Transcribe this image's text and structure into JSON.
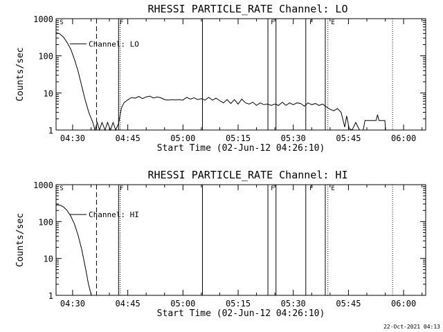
{
  "footer": "22-Oct-2021 04:13",
  "chart_data": [
    {
      "type": "line",
      "title": "RHESSI PARTICLE_RATE Channel: LO",
      "xlabel": "Start Time (02-Jun-12 04:26:10)",
      "ylabel": "Counts/sec",
      "yscale": "log",
      "ylim": [
        1,
        1000
      ],
      "xlim_minutes": [
        0,
        100.5
      ],
      "xticks": [
        {
          "t": 4.5,
          "label": "04:30"
        },
        {
          "t": 19.5,
          "label": "04:45"
        },
        {
          "t": 34.5,
          "label": "05:00"
        },
        {
          "t": 49.5,
          "label": "05:15"
        },
        {
          "t": 64.5,
          "label": "05:30"
        },
        {
          "t": 79.5,
          "label": "05:45"
        },
        {
          "t": 94.5,
          "label": "06:00"
        }
      ],
      "yticks": [
        {
          "v": 1,
          "label": "1"
        },
        {
          "v": 10,
          "label": "10"
        },
        {
          "v": 100,
          "label": "100"
        },
        {
          "v": 1000,
          "label": "1000"
        }
      ],
      "legend": "Channel: LO",
      "flags": [
        {
          "t": 0.8,
          "label": "S"
        },
        {
          "t": 17.1,
          "label": "F"
        },
        {
          "t": 58.2,
          "label": "F"
        },
        {
          "t": 68.7,
          "label": "F"
        },
        {
          "t": 74.6,
          "label": "E"
        }
      ],
      "vlines": [
        {
          "t": 11.0,
          "style": "dashed"
        },
        {
          "t": 17.0,
          "style": "solid"
        },
        {
          "t": 17.4,
          "style": "dotted"
        },
        {
          "t": 39.8,
          "style": "solid"
        },
        {
          "t": 57.6,
          "style": "solid"
        },
        {
          "t": 59.8,
          "style": "solid"
        },
        {
          "t": 67.9,
          "style": "solid"
        },
        {
          "t": 73.2,
          "style": "solid"
        },
        {
          "t": 73.9,
          "style": "dotted"
        },
        {
          "t": 91.5,
          "style": "dotted"
        }
      ],
      "series": [
        {
          "name": "LO",
          "points": [
            [
              0,
              420
            ],
            [
              1,
              390
            ],
            [
              2,
              320
            ],
            [
              3,
              230
            ],
            [
              4,
              150
            ],
            [
              5,
              80
            ],
            [
              6,
              38
            ],
            [
              7,
              15
            ],
            [
              8,
              6
            ],
            [
              9,
              2.8
            ],
            [
              10,
              1.6
            ],
            [
              10.6,
              1.0
            ],
            [
              11.2,
              1.6
            ],
            [
              11.8,
              1.0
            ],
            [
              12.5,
              1.6
            ],
            [
              13.3,
              1.0
            ],
            [
              14.0,
              1.6
            ],
            [
              14.8,
              1.0
            ],
            [
              15.5,
              1.6
            ],
            [
              16.2,
              1.0
            ],
            [
              17.0,
              1.5
            ],
            [
              17.8,
              4
            ],
            [
              18.5,
              5.5
            ],
            [
              19.5,
              6.5
            ],
            [
              20.5,
              7.5
            ],
            [
              21.5,
              7.2
            ],
            [
              22.5,
              8
            ],
            [
              23.5,
              7
            ],
            [
              24.5,
              7.8
            ],
            [
              25.5,
              8.2
            ],
            [
              26.5,
              7.3
            ],
            [
              27.5,
              7.8
            ],
            [
              28.5,
              7.4
            ],
            [
              29.5,
              6.6
            ],
            [
              30.5,
              6.4
            ],
            [
              31.5,
              6.6
            ],
            [
              32.5,
              6.5
            ],
            [
              33.5,
              6.6
            ],
            [
              34.5,
              6.4
            ],
            [
              35.5,
              7.6
            ],
            [
              36.5,
              6.8
            ],
            [
              37.5,
              7.4
            ],
            [
              38.5,
              6.6
            ],
            [
              39.5,
              7.0
            ],
            [
              40.5,
              6.4
            ],
            [
              41.5,
              7.6
            ],
            [
              42.5,
              6.4
            ],
            [
              43.5,
              7.2
            ],
            [
              44.5,
              6.2
            ],
            [
              45.5,
              5.4
            ],
            [
              46.5,
              6.6
            ],
            [
              47.5,
              5.2
            ],
            [
              48.5,
              6.6
            ],
            [
              49.5,
              5.0
            ],
            [
              50.5,
              6.8
            ],
            [
              51.5,
              5.4
            ],
            [
              52.5,
              5.0
            ],
            [
              53.5,
              5.6
            ],
            [
              54.5,
              4.6
            ],
            [
              55.5,
              5.4
            ],
            [
              56.5,
              4.8
            ],
            [
              57.5,
              5.0
            ],
            [
              58.5,
              4.6
            ],
            [
              59.5,
              5.0
            ],
            [
              60.5,
              4.6
            ],
            [
              61.5,
              5.6
            ],
            [
              62.5,
              4.6
            ],
            [
              63.5,
              5.4
            ],
            [
              64.5,
              4.8
            ],
            [
              65.5,
              5.4
            ],
            [
              66.5,
              5.2
            ],
            [
              67.5,
              4.4
            ],
            [
              68.5,
              5.4
            ],
            [
              69.5,
              4.8
            ],
            [
              70.5,
              5.2
            ],
            [
              71.5,
              4.6
            ],
            [
              72.5,
              5.0
            ],
            [
              73.5,
              4.2
            ],
            [
              74.5,
              3.6
            ],
            [
              75.5,
              3.3
            ],
            [
              76.5,
              3.8
            ],
            [
              77.5,
              3.0
            ],
            [
              78.5,
              1.2
            ],
            [
              79.0,
              2.4
            ],
            [
              79.7,
              1.1
            ],
            [
              80.5,
              1.0
            ],
            [
              81.5,
              1.6
            ],
            [
              82.5,
              1.0
            ],
            [
              83.5,
              1.0
            ],
            [
              84.0,
              1.8
            ],
            [
              86.0,
              1.8
            ],
            [
              87.0,
              1.8
            ],
            [
              87.4,
              2.6
            ],
            [
              87.8,
              1.8
            ],
            [
              89.4,
              1.8
            ],
            [
              89.6,
              1.0
            ]
          ]
        }
      ]
    },
    {
      "type": "line",
      "title": "RHESSI PARTICLE_RATE Channel: HI",
      "xlabel": "Start Time (02-Jun-12 04:26:10)",
      "ylabel": "Counts/sec",
      "yscale": "log",
      "ylim": [
        1,
        1000
      ],
      "xlim_minutes": [
        0,
        100.5
      ],
      "xticks": [
        {
          "t": 4.5,
          "label": "04:30"
        },
        {
          "t": 19.5,
          "label": "04:45"
        },
        {
          "t": 34.5,
          "label": "05:00"
        },
        {
          "t": 49.5,
          "label": "05:15"
        },
        {
          "t": 64.5,
          "label": "05:30"
        },
        {
          "t": 79.5,
          "label": "05:45"
        },
        {
          "t": 94.5,
          "label": "06:00"
        }
      ],
      "yticks": [
        {
          "v": 1,
          "label": "1"
        },
        {
          "v": 10,
          "label": "10"
        },
        {
          "v": 100,
          "label": "100"
        },
        {
          "v": 1000,
          "label": "1000"
        }
      ],
      "legend": "Channel: HI",
      "flags": [
        {
          "t": 0.8,
          "label": "S"
        },
        {
          "t": 17.1,
          "label": "F"
        },
        {
          "t": 58.2,
          "label": "F"
        },
        {
          "t": 68.7,
          "label": "F"
        },
        {
          "t": 74.6,
          "label": "E"
        }
      ],
      "vlines": [
        {
          "t": 11.0,
          "style": "dashed"
        },
        {
          "t": 17.0,
          "style": "solid"
        },
        {
          "t": 17.4,
          "style": "dotted"
        },
        {
          "t": 39.8,
          "style": "solid"
        },
        {
          "t": 57.6,
          "style": "solid"
        },
        {
          "t": 59.8,
          "style": "solid"
        },
        {
          "t": 67.9,
          "style": "solid"
        },
        {
          "t": 73.2,
          "style": "solid"
        },
        {
          "t": 73.9,
          "style": "dotted"
        },
        {
          "t": 91.5,
          "style": "dotted"
        }
      ],
      "series": [
        {
          "name": "HI",
          "points": [
            [
              0,
              285
            ],
            [
              1,
              280
            ],
            [
              2,
              250
            ],
            [
              3,
              200
            ],
            [
              4,
              140
            ],
            [
              5,
              85
            ],
            [
              6,
              42
            ],
            [
              7,
              17
            ],
            [
              8,
              5.5
            ],
            [
              8.8,
              2.0
            ],
            [
              9.6,
              1.0
            ]
          ]
        }
      ]
    }
  ]
}
